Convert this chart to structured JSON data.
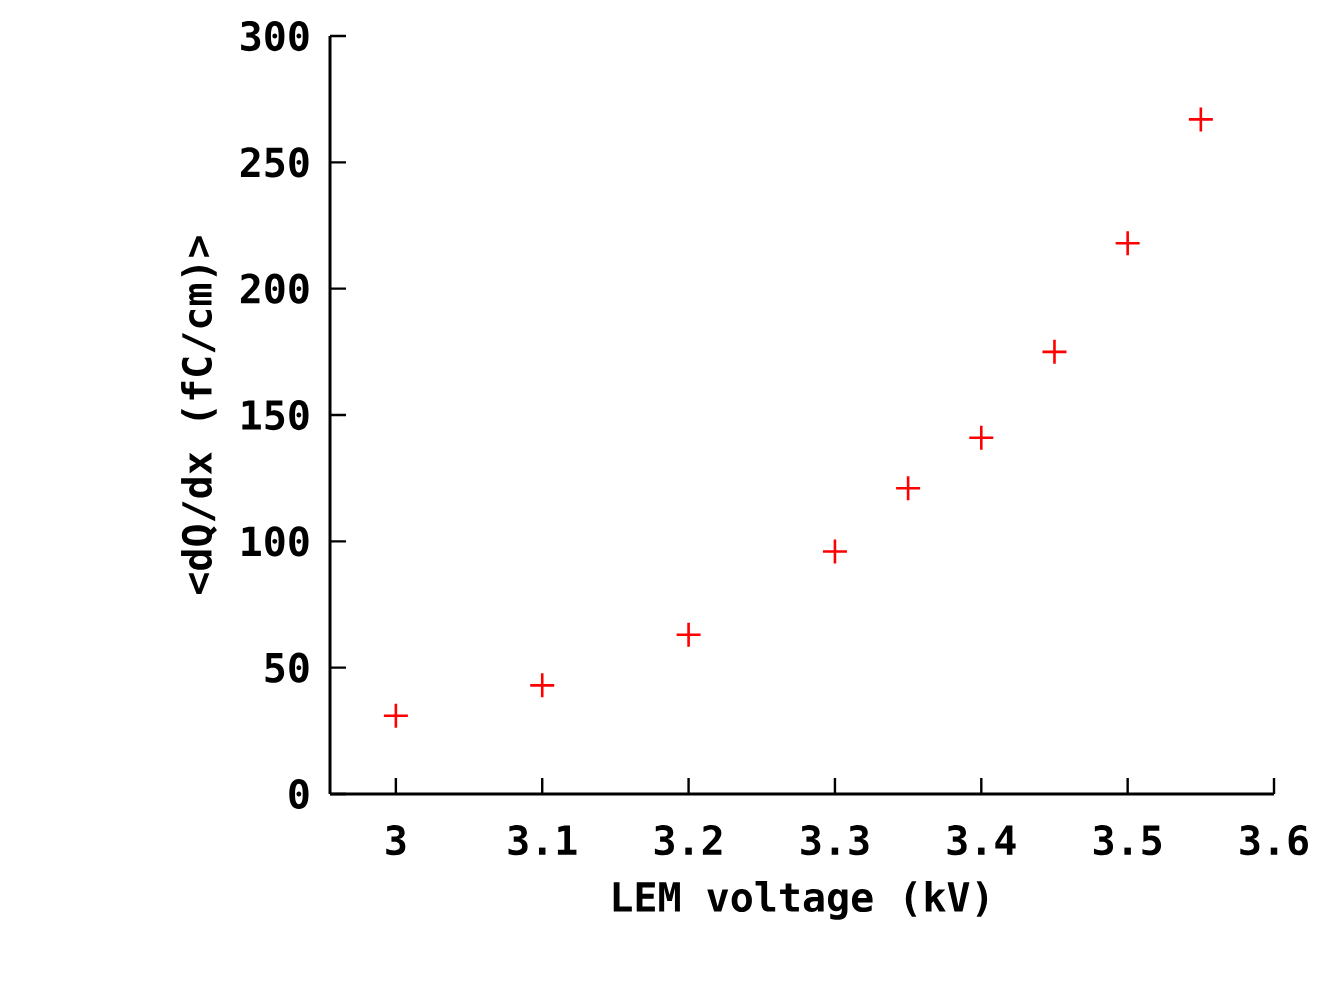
{
  "chart_data": {
    "type": "scatter",
    "xlabel": "LEM voltage (kV)",
    "ylabel": "<dQ/dx (fC/cm)>",
    "x": [
      3.0,
      3.1,
      3.2,
      3.3,
      3.35,
      3.4,
      3.45,
      3.5,
      3.55
    ],
    "series": [
      {
        "color": "#ff0000",
        "values": [
          31,
          43,
          63,
          96,
          121,
          141,
          175,
          218,
          267
        ]
      }
    ],
    "xlim": [
      2.955,
      3.6
    ],
    "ylim": [
      0,
      300
    ],
    "xticks": [
      3,
      3.1,
      3.2,
      3.3,
      3.4,
      3.5,
      3.6
    ],
    "yticks": [
      0,
      50,
      100,
      150,
      200,
      250,
      300
    ],
    "marker": "cross",
    "grid": false
  }
}
